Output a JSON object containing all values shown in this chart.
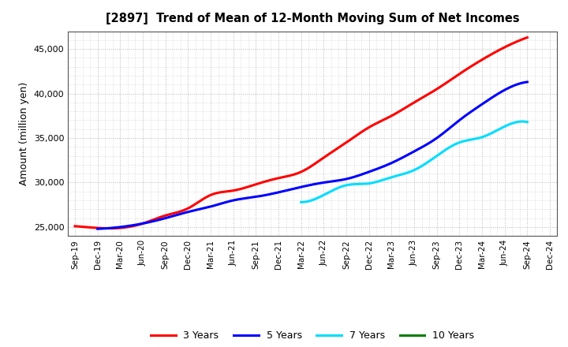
{
  "title": "[2897]  Trend of Mean of 12-Month Moving Sum of Net Incomes",
  "ylabel": "Amount (million yen)",
  "background_color": "#ffffff",
  "plot_bg_color": "#ffffff",
  "grid_color": "#999999",
  "ylim": [
    24000,
    47000
  ],
  "yticks": [
    25000,
    30000,
    35000,
    40000,
    45000
  ],
  "x_labels": [
    "Sep-19",
    "Dec-19",
    "Mar-20",
    "Jun-20",
    "Sep-20",
    "Dec-20",
    "Mar-21",
    "Jun-21",
    "Sep-21",
    "Dec-21",
    "Mar-22",
    "Jun-22",
    "Sep-22",
    "Dec-22",
    "Mar-23",
    "Jun-23",
    "Sep-23",
    "Dec-23",
    "Mar-24",
    "Jun-24",
    "Sep-24",
    "Dec-24"
  ],
  "series": {
    "3 Years": {
      "color": "#ff0000",
      "data_x": [
        0,
        1,
        2,
        3,
        4,
        5,
        6,
        7,
        8,
        9,
        10,
        11,
        12,
        13,
        14,
        15,
        16,
        17,
        18,
        19,
        20
      ],
      "data_y": [
        25100,
        24900,
        24900,
        25400,
        26300,
        27100,
        28600,
        29100,
        29800,
        30500,
        31200,
        32800,
        34500,
        36200,
        37500,
        39000,
        40500,
        42200,
        43800,
        45200,
        46300
      ]
    },
    "5 Years": {
      "color": "#0000ff",
      "data_x": [
        1,
        2,
        3,
        4,
        5,
        6,
        7,
        8,
        9,
        10,
        11,
        12,
        13,
        14,
        15,
        16,
        17,
        18,
        19,
        20
      ],
      "data_y": [
        24800,
        25000,
        25400,
        26000,
        26700,
        27300,
        28000,
        28400,
        28900,
        29500,
        30000,
        30400,
        31200,
        32200,
        33500,
        35000,
        37000,
        38800,
        40400,
        41300
      ]
    },
    "7 Years": {
      "color": "#00ddff",
      "data_x": [
        10,
        11,
        12,
        13,
        14,
        15,
        16,
        17,
        18,
        19,
        20
      ],
      "data_y": [
        27800,
        28600,
        29700,
        29900,
        30600,
        31400,
        33000,
        34500,
        35100,
        36300,
        36800
      ]
    },
    "10 Years": {
      "color": "#008000",
      "data_x": [],
      "data_y": []
    }
  },
  "legend_items": [
    {
      "label": "3 Years",
      "color": "#ff0000"
    },
    {
      "label": "5 Years",
      "color": "#0000ff"
    },
    {
      "label": "7 Years",
      "color": "#00ddff"
    },
    {
      "label": "10 Years",
      "color": "#008000"
    }
  ]
}
